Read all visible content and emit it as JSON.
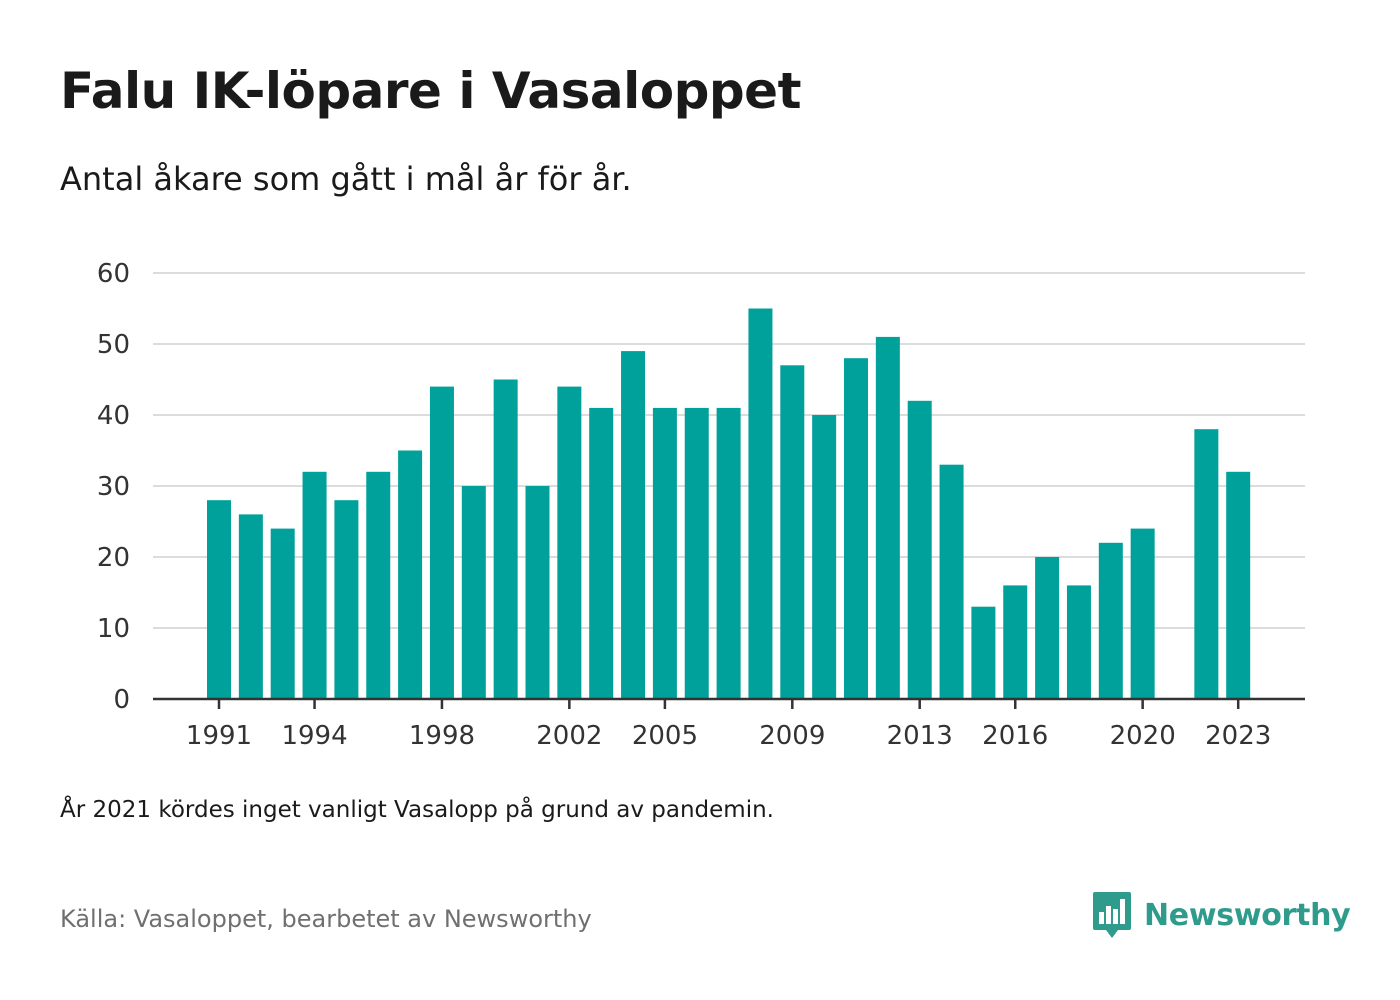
{
  "chart_data": {
    "type": "bar",
    "title": "Falu IK-löpare i Vasaloppet",
    "subtitle": "Antal åkare som gått i mål år för år.",
    "categories": [
      1991,
      1992,
      1993,
      1994,
      1995,
      1996,
      1997,
      1998,
      1999,
      2000,
      2001,
      2002,
      2003,
      2004,
      2005,
      2006,
      2007,
      2008,
      2009,
      2010,
      2011,
      2012,
      2013,
      2014,
      2015,
      2016,
      2017,
      2018,
      2019,
      2020,
      2021,
      2022,
      2023
    ],
    "values": [
      28,
      26,
      24,
      32,
      28,
      32,
      35,
      44,
      30,
      45,
      30,
      44,
      41,
      49,
      41,
      41,
      41,
      55,
      47,
      40,
      48,
      51,
      42,
      33,
      13,
      16,
      20,
      16,
      22,
      24,
      null,
      38,
      32
    ],
    "x_tick_labels": [
      "1991",
      "1994",
      "1998",
      "2002",
      "2005",
      "2009",
      "2013",
      "2016",
      "2020",
      "2023"
    ],
    "ylim": [
      0,
      60
    ],
    "y_ticks": [
      0,
      10,
      20,
      30,
      40,
      50,
      60
    ],
    "xlabel": "",
    "ylabel": "",
    "grid": true,
    "bar_color": "#00a19a",
    "note": "År 2021 kördes inget vanligt Vasalopp på grund av pandemin.",
    "source": "Källa: Vasaloppet, bearbetet av Newsworthy"
  },
  "brand": {
    "name": "Newsworthy",
    "icon": "bar-chart-speech-bubble-icon",
    "color": "#2f9b8c"
  }
}
